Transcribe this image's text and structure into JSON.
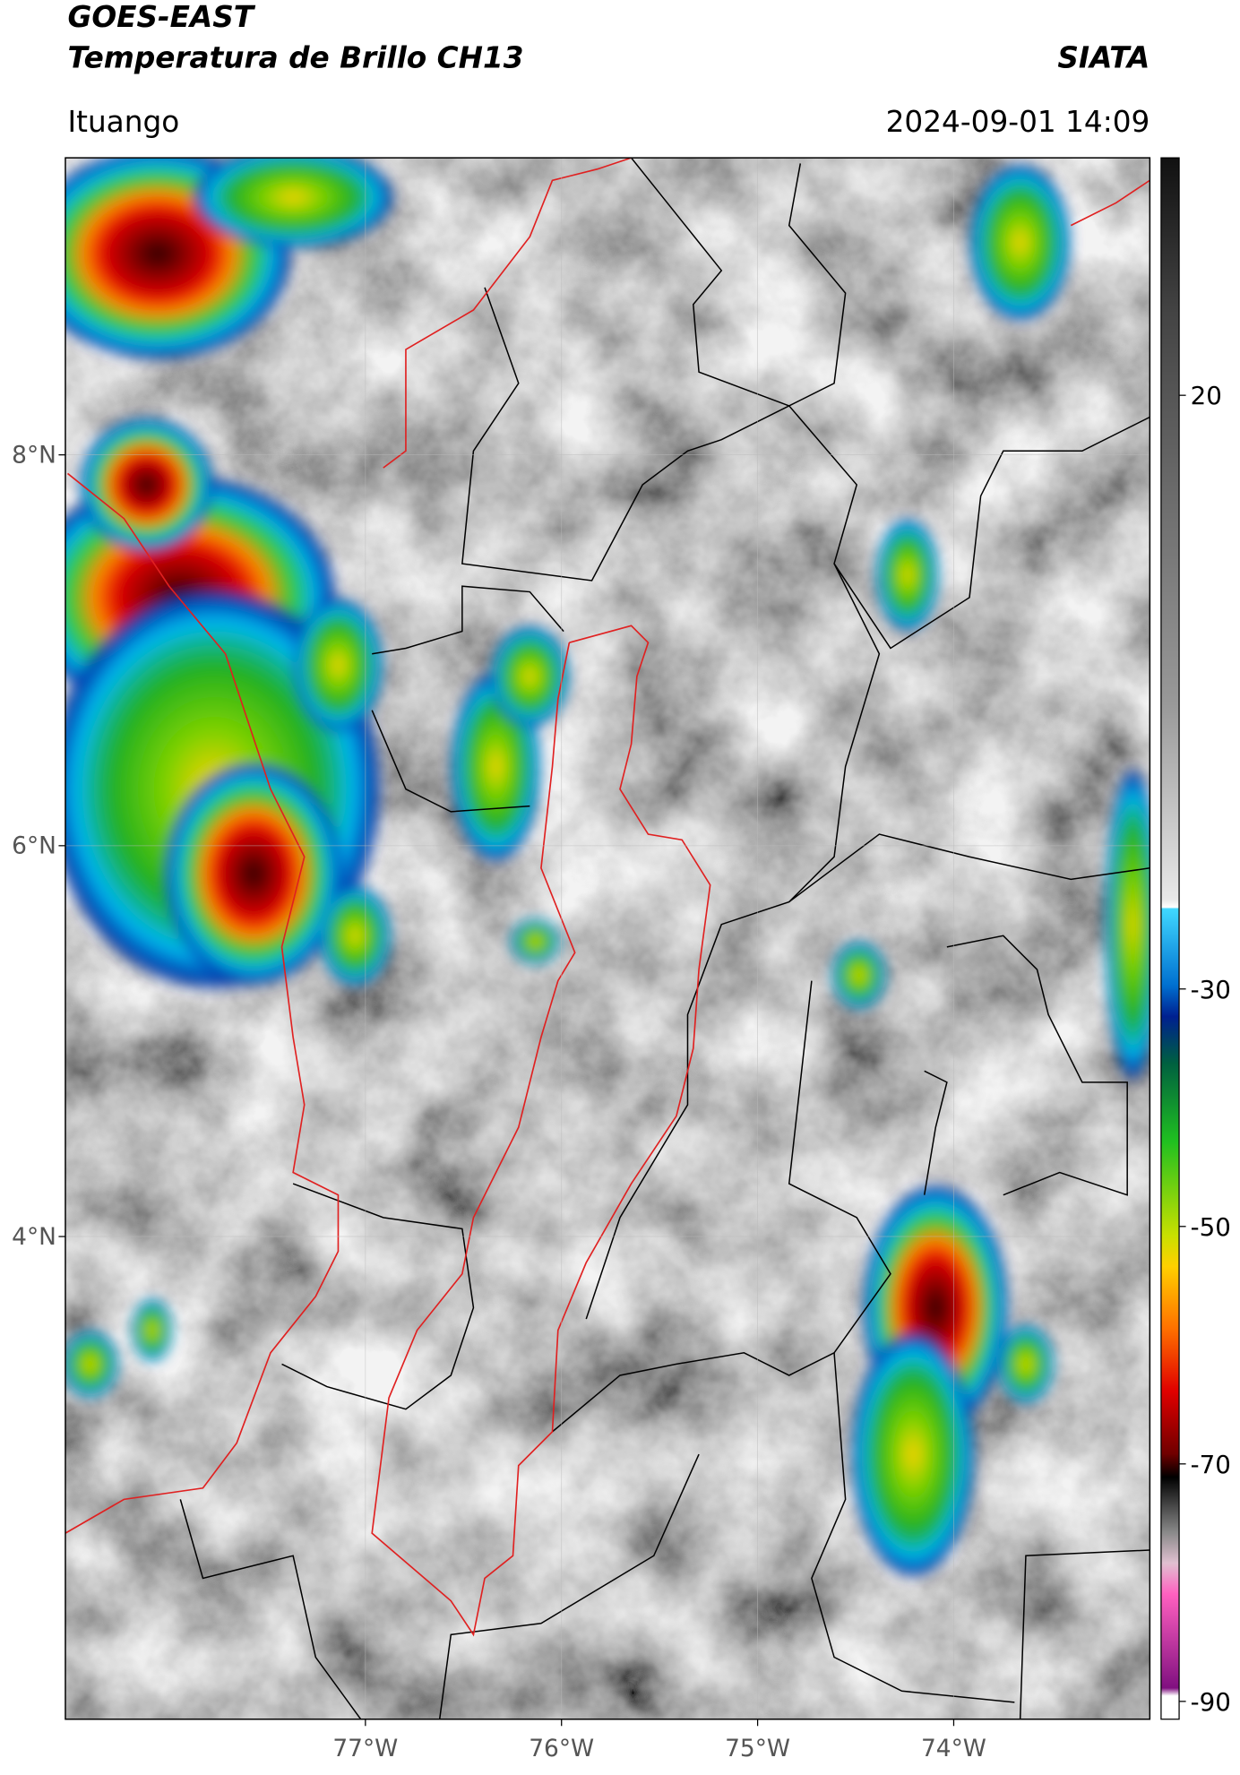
{
  "map": {
    "title": "GOES-EAST",
    "subtitle": "Temperatura de Brillo CH13",
    "source": "SIATA",
    "location": "Ituango",
    "datetime": "2024-09-01 14:09",
    "latlim": [
      1.53,
      9.52
    ],
    "lonlim": [
      -78.53,
      -73.0
    ],
    "latticks": [
      {
        "value": 8,
        "label": "8°N"
      },
      {
        "value": 6,
        "label": "6°N"
      },
      {
        "value": 4,
        "label": "4°N"
      }
    ],
    "lonticks": [
      {
        "value": -77,
        "label": "77°W"
      },
      {
        "value": -76,
        "label": "76°W"
      },
      {
        "value": -75,
        "label": "75°W"
      },
      {
        "value": -74,
        "label": "74°W"
      }
    ],
    "grid": true,
    "colorbar": {
      "lim": [
        -91.5,
        40
      ],
      "ticks": [
        20,
        -30,
        -50,
        -70,
        -90
      ]
    }
  }
}
